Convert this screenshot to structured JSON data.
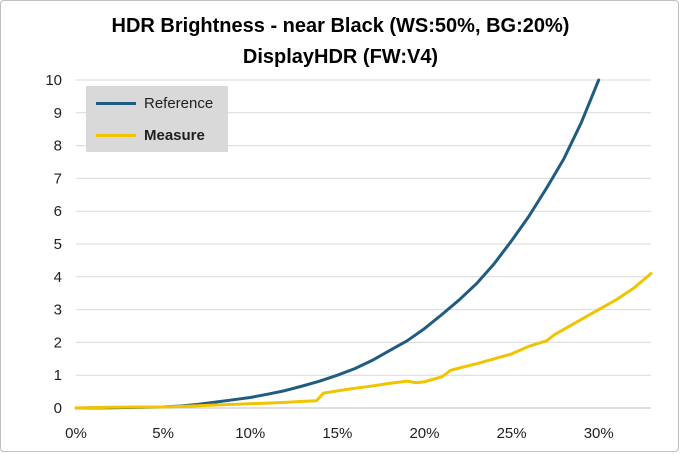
{
  "chart_data": {
    "type": "line",
    "title": "HDR Brightness - near Black (WS:50%, BG:20%)",
    "subtitle": "DisplayHDR (FW:V4)",
    "xlabel": "",
    "ylabel": "",
    "xlim": [
      0,
      0.33
    ],
    "ylim": [
      0,
      10
    ],
    "x_ticks": [
      "0%",
      "5%",
      "10%",
      "15%",
      "20%",
      "25%",
      "30%"
    ],
    "y_ticks": [
      "0",
      "1",
      "2",
      "3",
      "4",
      "5",
      "6",
      "7",
      "8",
      "9",
      "10"
    ],
    "grid": "horizontal",
    "legend_position": "top-left",
    "series": [
      {
        "name": "Reference",
        "color": "#1f5c80",
        "x": [
          0,
          0.02,
          0.04,
          0.05,
          0.06,
          0.07,
          0.08,
          0.09,
          0.1,
          0.11,
          0.12,
          0.13,
          0.14,
          0.15,
          0.16,
          0.17,
          0.18,
          0.19,
          0.2,
          0.21,
          0.22,
          0.23,
          0.24,
          0.25,
          0.26,
          0.27,
          0.28,
          0.29,
          0.3
        ],
        "values": [
          0,
          0.01,
          0.02,
          0.03,
          0.06,
          0.11,
          0.18,
          0.25,
          0.32,
          0.42,
          0.53,
          0.67,
          0.82,
          1.0,
          1.2,
          1.45,
          1.75,
          2.05,
          2.42,
          2.85,
          3.3,
          3.8,
          4.4,
          5.1,
          5.85,
          6.7,
          7.6,
          8.7,
          10.0
        ]
      },
      {
        "name": "Measure",
        "color": "#f0c400",
        "x": [
          0,
          0.02,
          0.04,
          0.05,
          0.06,
          0.07,
          0.08,
          0.09,
          0.1,
          0.11,
          0.12,
          0.13,
          0.138,
          0.142,
          0.15,
          0.16,
          0.17,
          0.18,
          0.19,
          0.195,
          0.2,
          0.21,
          0.215,
          0.22,
          0.23,
          0.24,
          0.25,
          0.26,
          0.27,
          0.275,
          0.28,
          0.29,
          0.3,
          0.31,
          0.32,
          0.33
        ],
        "values": [
          0,
          0.02,
          0.03,
          0.03,
          0.05,
          0.07,
          0.09,
          0.11,
          0.13,
          0.15,
          0.17,
          0.2,
          0.22,
          0.45,
          0.52,
          0.6,
          0.67,
          0.75,
          0.82,
          0.77,
          0.8,
          0.95,
          1.15,
          1.22,
          1.35,
          1.5,
          1.65,
          1.88,
          2.05,
          2.25,
          2.4,
          2.7,
          3.0,
          3.3,
          3.65,
          4.1
        ]
      }
    ]
  }
}
